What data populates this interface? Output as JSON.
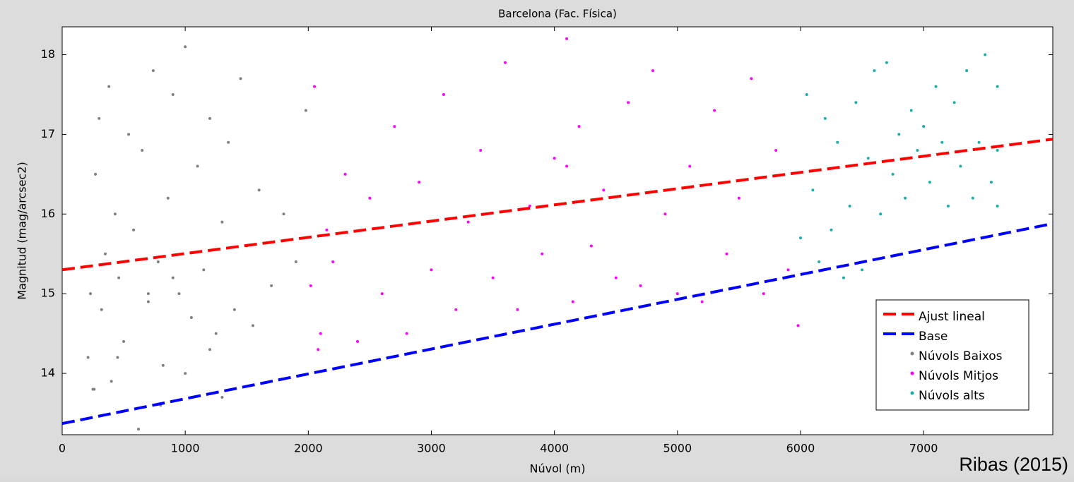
{
  "chart_data": {
    "type": "scatter",
    "title": "Barcelona (Fac. Física)",
    "x_label": "Núvol (m)",
    "y_label": "Magnitud (mag/arcsec2)",
    "annotation": "Ribas (2015)",
    "xlim": [
      0,
      8050
    ],
    "ylim": [
      13.23,
      18.35
    ],
    "xticks": [
      0,
      1000,
      2000,
      3000,
      4000,
      5000,
      6000,
      7000
    ],
    "yticks": [
      14,
      15,
      16,
      17,
      18
    ],
    "legend": "lower right",
    "series": [
      {
        "name": "Ajust lineal",
        "type": "line",
        "color": "#ff0000",
        "x": [
          0,
          8050
        ],
        "values": [
          15.3,
          16.94
        ]
      },
      {
        "name": "Base",
        "type": "line",
        "color": "#0000ff",
        "x": [
          0,
          8050
        ],
        "values": [
          13.37,
          15.88
        ]
      },
      {
        "name": "Núvols Baixos",
        "type": "scatter",
        "color": "#808080",
        "x": [
          210,
          230,
          250,
          270,
          300,
          320,
          350,
          380,
          400,
          430,
          460,
          500,
          540,
          580,
          620,
          650,
          700,
          740,
          780,
          820,
          860,
          900,
          950,
          1000,
          1050,
          1100,
          1150,
          1200,
          1250,
          1300,
          1350,
          1400,
          1450,
          1500,
          1550,
          1600,
          1700,
          1800,
          1900,
          1980,
          260,
          450,
          800,
          1000,
          1200,
          1300,
          700,
          900
        ],
        "values": [
          14.2,
          15.0,
          13.8,
          16.5,
          17.2,
          14.8,
          15.5,
          17.6,
          13.9,
          16.0,
          15.2,
          14.4,
          17.0,
          15.8,
          13.3,
          16.8,
          14.9,
          17.8,
          15.4,
          14.1,
          16.2,
          17.5,
          15.0,
          18.1,
          14.7,
          16.6,
          15.3,
          17.2,
          14.5,
          15.9,
          16.9,
          14.8,
          17.7,
          15.6,
          14.6,
          16.3,
          15.1,
          16.0,
          15.4,
          17.3,
          13.8,
          14.2,
          13.6,
          14.0,
          14.3,
          13.7,
          15.0,
          15.2
        ]
      },
      {
        "name": "Núvols Mitjos",
        "type": "scatter",
        "color": "#ff00ff",
        "x": [
          2020,
          2050,
          2100,
          2150,
          2200,
          2300,
          2400,
          2500,
          2600,
          2700,
          2800,
          2900,
          3000,
          3100,
          3200,
          3300,
          3400,
          3500,
          3600,
          3700,
          3800,
          3900,
          4000,
          4100,
          4150,
          4200,
          4300,
          4400,
          4500,
          4600,
          4700,
          4800,
          4900,
          5000,
          5100,
          5200,
          5300,
          5400,
          5500,
          5600,
          5700,
          5800,
          5900,
          5980,
          2080,
          4100
        ],
        "values": [
          15.1,
          17.6,
          14.5,
          15.8,
          15.4,
          16.5,
          14.4,
          16.2,
          15.0,
          17.1,
          14.5,
          16.4,
          15.3,
          17.5,
          14.8,
          15.9,
          16.8,
          15.2,
          17.9,
          14.8,
          16.1,
          15.5,
          16.7,
          18.2,
          14.9,
          17.1,
          15.6,
          16.3,
          15.2,
          17.4,
          15.1,
          17.8,
          16.0,
          15.0,
          16.6,
          14.9,
          17.3,
          15.5,
          16.2,
          17.7,
          15.0,
          16.8,
          15.3,
          14.6,
          14.3,
          16.6
        ]
      },
      {
        "name": "Núvols alts",
        "type": "scatter",
        "color": "#1aaeaa",
        "x": [
          6000,
          6050,
          6100,
          6150,
          6200,
          6250,
          6300,
          6350,
          6400,
          6450,
          6500,
          6550,
          6600,
          6650,
          6700,
          6750,
          6800,
          6850,
          6900,
          6950,
          7000,
          7050,
          7100,
          7150,
          7200,
          7250,
          7300,
          7350,
          7400,
          7450,
          7500,
          7550,
          7600,
          7600,
          7600
        ],
        "values": [
          15.7,
          17.5,
          16.3,
          15.4,
          17.2,
          15.8,
          16.9,
          15.2,
          16.1,
          17.4,
          15.3,
          16.7,
          17.8,
          16.0,
          17.9,
          16.5,
          17.0,
          16.2,
          17.3,
          16.8,
          17.1,
          16.4,
          17.6,
          16.9,
          16.1,
          17.4,
          16.6,
          17.8,
          16.2,
          16.9,
          18.0,
          16.4,
          16.1,
          17.6,
          16.8
        ]
      }
    ]
  }
}
